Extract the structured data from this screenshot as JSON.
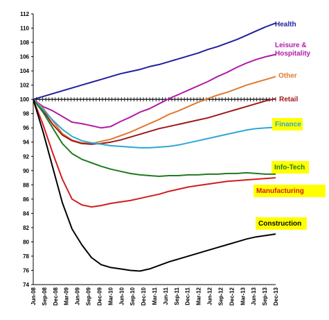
{
  "chart_data": {
    "type": "line",
    "title": "",
    "xlabel": "",
    "ylabel": "",
    "ylim": [
      74,
      112
    ],
    "yticks": [
      74,
      76,
      78,
      80,
      82,
      84,
      86,
      88,
      90,
      92,
      94,
      96,
      98,
      100,
      102,
      104,
      106,
      108,
      110,
      112
    ],
    "x_tick_labels": [
      "Jun-08",
      "Sep-08",
      "Dec-08",
      "Mar-09",
      "Jun-09",
      "Sep-09",
      "Dec-09",
      "Mar-10",
      "Jun-10",
      "Sep-10",
      "Dec-10",
      "Mar-11",
      "Jun-11",
      "Sep-11",
      "Dec-11",
      "Mar-12",
      "Jun-12",
      "Sep-12",
      "Dec-12",
      "Mar-13",
      "Jun-13",
      "Sep-13",
      "Dec-13"
    ],
    "reference_line": 100,
    "grid": false,
    "series": [
      {
        "name": "Health",
        "color": "#1f1f9e",
        "label_bg": "",
        "values": [
          100,
          100.4,
          100.8,
          101.2,
          101.6,
          102.0,
          102.4,
          102.8,
          103.2,
          103.6,
          103.9,
          104.2,
          104.6,
          104.9,
          105.3,
          105.7,
          106.1,
          106.5,
          107.0,
          107.4,
          107.9,
          108.4,
          109.0,
          109.6,
          110.2,
          110.7
        ]
      },
      {
        "name": "Leisure & Hospitality",
        "color": "#b01aa8",
        "label_bg": "",
        "values": [
          100,
          99,
          98.4,
          97.6,
          96.8,
          96.6,
          96.3,
          96.0,
          96.2,
          96.9,
          97.5,
          98.2,
          98.7,
          99.4,
          100.1,
          100.7,
          101.3,
          101.9,
          102.5,
          103.2,
          103.8,
          104.5,
          105.1,
          105.6,
          106.0,
          106.3
        ]
      },
      {
        "name": "Other",
        "color": "#e07a2e",
        "label_bg": "",
        "values": [
          100,
          98.8,
          97,
          95.2,
          94.3,
          93.9,
          93.8,
          94.1,
          94.4,
          94.9,
          95.4,
          96.0,
          96.6,
          97.2,
          97.9,
          98.4,
          99.0,
          99.6,
          100.1,
          100.6,
          101.0,
          101.5,
          102.0,
          102.4,
          102.8,
          103.2
        ]
      },
      {
        "name": "Retail",
        "color": "#a01818",
        "label_bg": "",
        "values": [
          100,
          98.5,
          96.5,
          95.0,
          94.2,
          93.8,
          93.7,
          93.8,
          94.0,
          94.3,
          94.7,
          95.1,
          95.5,
          95.9,
          96.2,
          96.5,
          96.8,
          97.1,
          97.4,
          97.8,
          98.2,
          98.6,
          99.0,
          99.4,
          99.8,
          100.1
        ]
      },
      {
        "name": "Finance",
        "color": "#2aa8d4",
        "label_bg": "#ffff00",
        "values": [
          100,
          98.6,
          97.1,
          95.8,
          94.8,
          94.2,
          93.9,
          93.7,
          93.5,
          93.4,
          93.3,
          93.2,
          93.2,
          93.3,
          93.4,
          93.6,
          93.9,
          94.2,
          94.5,
          94.8,
          95.1,
          95.4,
          95.7,
          95.9,
          96.0,
          96.1
        ]
      },
      {
        "name": "Info-Tech",
        "color": "#1f7a1f",
        "label_bg": "#ffff00",
        "values": [
          100,
          98.2,
          96,
          93.8,
          92.4,
          91.6,
          91.1,
          90.6,
          90.2,
          89.9,
          89.6,
          89.4,
          89.3,
          89.2,
          89.3,
          89.3,
          89.4,
          89.4,
          89.5,
          89.5,
          89.6,
          89.6,
          89.7,
          89.6,
          89.5,
          89.5
        ]
      },
      {
        "name": "Manufacturing",
        "color": "#d21c1c",
        "label_bg": "#ffff00",
        "values": [
          100,
          96.5,
          92.5,
          88.8,
          86.0,
          85.2,
          84.9,
          85.1,
          85.4,
          85.6,
          85.8,
          86.1,
          86.4,
          86.7,
          87.1,
          87.4,
          87.7,
          87.9,
          88.1,
          88.3,
          88.5,
          88.6,
          88.7,
          88.8,
          88.9,
          89.0
        ]
      },
      {
        "name": "Construction",
        "color": "#000000",
        "label_bg": "#ffff00",
        "values": [
          100,
          95.5,
          90.5,
          85.5,
          81.8,
          79.6,
          77.8,
          76.8,
          76.4,
          76.2,
          76.0,
          75.9,
          76.2,
          76.7,
          77.2,
          77.6,
          78.0,
          78.4,
          78.8,
          79.2,
          79.6,
          80.0,
          80.4,
          80.7,
          80.9,
          81.1
        ]
      }
    ]
  }
}
